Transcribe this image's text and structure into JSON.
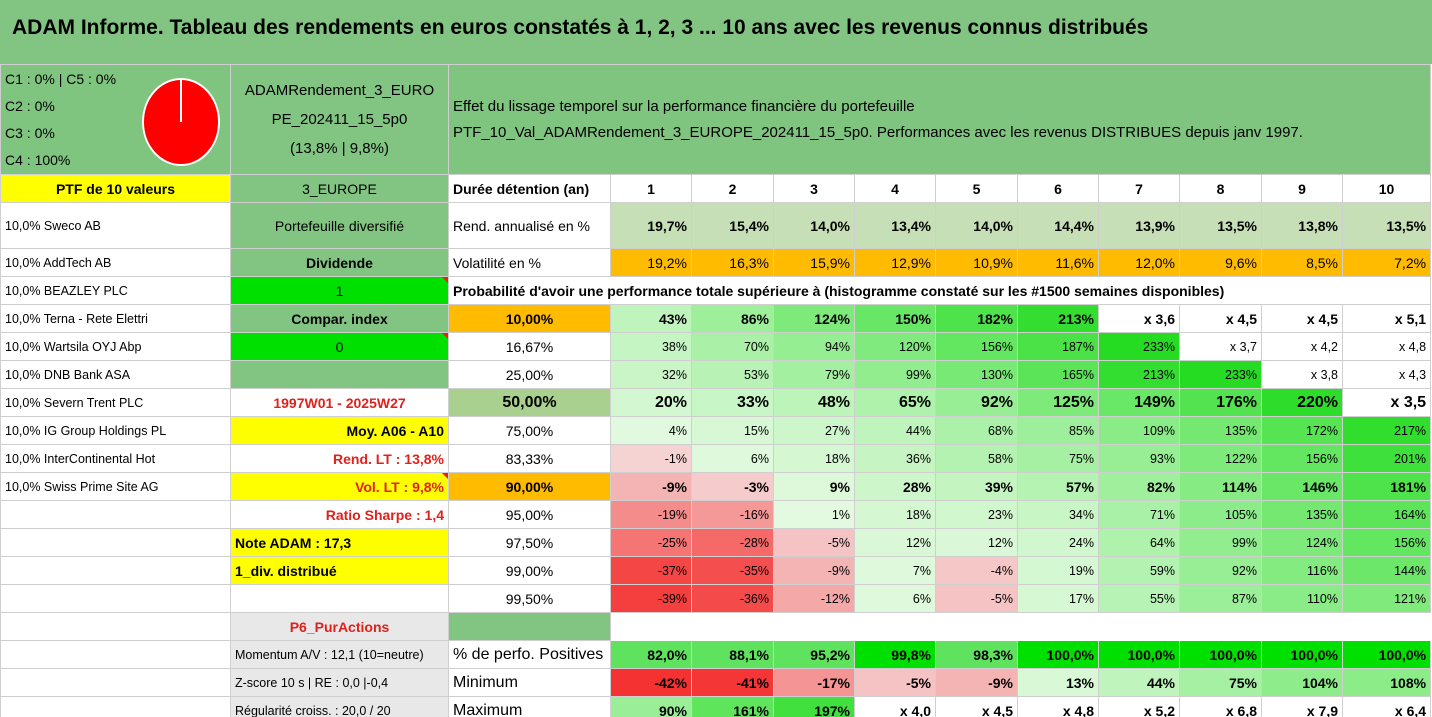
{
  "title": "ADAM Informe. Tableau des rendements en euros constatés à 1, 2, 3 ... 10 ans avec les revenus connus distribués",
  "colors": {
    "header_green": "#82c582",
    "yellow": "#ffff00",
    "bright_green": "#00e000",
    "orange": "#ffbb00",
    "red_text": "#e0211c",
    "pie_red": "#ff0000"
  },
  "composition": {
    "c1_c5": "C1 : 0% | C5 : 0%",
    "c2": "C2 : 0%",
    "c3": "C3 : 0%",
    "c4": "C4 : 100%",
    "pie_icon": "pie-chart-icon"
  },
  "portfolio_box": {
    "line1": "ADAMRendement_3_EURO",
    "line2": "PE_202411_15_5p0",
    "line3": "(13,8% | 9,8%)"
  },
  "description": {
    "line1": "Effet du lissage temporel sur la performance financière du portefeuille",
    "line2": "PTF_10_Val_ADAMRendement_3_EUROPE_202411_15_5p0. Performances avec les revenus DISTRIBUES depuis janv 1997."
  },
  "holdings_header": "PTF de 10 valeurs",
  "holdings": [
    "10,0% Sweco AB",
    "10,0% AddTech AB",
    "10,0% BEAZLEY PLC",
    "10,0% Terna - Rete Elettri",
    "10,0% Wartsila OYJ Abp",
    "10,0% DNB Bank ASA",
    "10,0% Severn Trent PLC",
    "10,0% IG Group Holdings PL",
    "10,0% InterContinental Hot",
    "10,0% Swiss Prime Site AG"
  ],
  "middle": {
    "region": "3_EUROPE",
    "type": "Portefeuille diversifié",
    "dividend_label": "Dividende",
    "dividend_value": "1",
    "compar_label": "Compar. index",
    "compar_value": "0",
    "period": "1997W01 - 2025W27",
    "moy": "Moy. A06 - A10",
    "rend_lt": "Rend. LT : 13,8%",
    "vol_lt": "Vol. LT : 9,8%",
    "sharpe": "Ratio Sharpe : 1,4",
    "note": "Note ADAM : 17,3",
    "div": "1_div. distribué",
    "category": "P6_PurActions"
  },
  "indicators": {
    "momentum": "Momentum A/V : 12,1 (10=neutre)",
    "zscore": "Z-score 10 s | RE : 0,0 |-0,4",
    "regularite": "Régularité croiss. : 20,0 / 20"
  },
  "table": {
    "duration_label": "Durée détention (an)",
    "years": [
      "1",
      "2",
      "3",
      "4",
      "5",
      "6",
      "7",
      "8",
      "9",
      "10"
    ],
    "rend_label": "Rend. annualisé en %",
    "rend": [
      "19,7%",
      "15,4%",
      "14,0%",
      "13,4%",
      "14,0%",
      "14,4%",
      "13,9%",
      "13,5%",
      "13,8%",
      "13,5%"
    ],
    "vol_label": "Volatilité en %",
    "vol": [
      "19,2%",
      "16,3%",
      "15,9%",
      "12,9%",
      "10,9%",
      "11,6%",
      "12,0%",
      "9,6%",
      "8,5%",
      "7,2%"
    ],
    "prob_title": "Probabilité d'avoir une performance totale supérieure à (histogramme constaté sur les #1500 semaines disponibles)",
    "quantiles": [
      {
        "p": "10,00%",
        "v": [
          "43%",
          "86%",
          "124%",
          "150%",
          "182%",
          "213%",
          "x 3,6",
          "x 4,5",
          "x 4,5",
          "x 5,1"
        ]
      },
      {
        "p": "16,67%",
        "v": [
          "38%",
          "70%",
          "94%",
          "120%",
          "156%",
          "187%",
          "233%",
          "x 3,7",
          "x 4,2",
          "x 4,8"
        ]
      },
      {
        "p": "25,00%",
        "v": [
          "32%",
          "53%",
          "79%",
          "99%",
          "130%",
          "165%",
          "213%",
          "233%",
          "x 3,8",
          "x 4,3"
        ]
      },
      {
        "p": "50,00%",
        "v": [
          "20%",
          "33%",
          "48%",
          "65%",
          "92%",
          "125%",
          "149%",
          "176%",
          "220%",
          "x 3,5"
        ]
      },
      {
        "p": "75,00%",
        "v": [
          "4%",
          "15%",
          "27%",
          "44%",
          "68%",
          "85%",
          "109%",
          "135%",
          "172%",
          "217%"
        ]
      },
      {
        "p": "83,33%",
        "v": [
          "-1%",
          "6%",
          "18%",
          "36%",
          "58%",
          "75%",
          "93%",
          "122%",
          "156%",
          "201%"
        ]
      },
      {
        "p": "90,00%",
        "v": [
          "-9%",
          "-3%",
          "9%",
          "28%",
          "39%",
          "57%",
          "82%",
          "114%",
          "146%",
          "181%"
        ]
      },
      {
        "p": "95,00%",
        "v": [
          "-19%",
          "-16%",
          "1%",
          "18%",
          "23%",
          "34%",
          "71%",
          "105%",
          "135%",
          "164%"
        ]
      },
      {
        "p": "97,50%",
        "v": [
          "-25%",
          "-28%",
          "-5%",
          "12%",
          "12%",
          "24%",
          "64%",
          "99%",
          "124%",
          "156%"
        ]
      },
      {
        "p": "99,00%",
        "v": [
          "-37%",
          "-35%",
          "-9%",
          "7%",
          "-4%",
          "19%",
          "59%",
          "92%",
          "116%",
          "144%"
        ]
      },
      {
        "p": "99,50%",
        "v": [
          "-39%",
          "-36%",
          "-12%",
          "6%",
          "-5%",
          "17%",
          "55%",
          "87%",
          "110%",
          "121%"
        ]
      }
    ],
    "pos_label": "% de perfo. Positives",
    "pos": [
      "82,0%",
      "88,1%",
      "95,2%",
      "99,8%",
      "98,3%",
      "100,0%",
      "100,0%",
      "100,0%",
      "100,0%",
      "100,0%"
    ],
    "min_label": "Minimum",
    "min": [
      "-42%",
      "-41%",
      "-17%",
      "-5%",
      "-9%",
      "13%",
      "44%",
      "75%",
      "104%",
      "108%"
    ],
    "max_label": "Maximum",
    "max": [
      "90%",
      "161%",
      "197%",
      "x 4,0",
      "x 4,5",
      "x 4,8",
      "x 5,2",
      "x 6,8",
      "x 7,9",
      "x 6,4"
    ]
  }
}
